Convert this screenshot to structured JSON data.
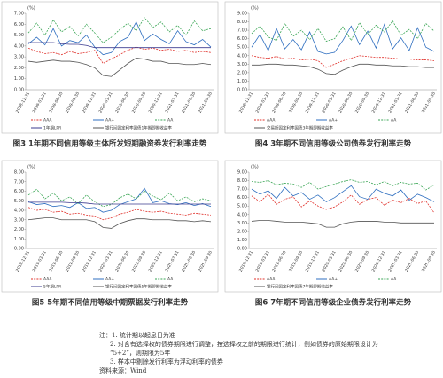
{
  "chart_data": [
    {
      "type": "line",
      "title": "图3 1年期不同信用等级主体所发短期融资券发行利率走势",
      "y_label": "(%)",
      "categories": [
        "2018-12-31",
        null,
        "2019-03-31",
        null,
        "2019-06-30",
        null,
        "2019-09-30",
        null,
        "2019-12-31",
        null,
        "2020-03-31",
        null,
        "2020-06-30",
        null,
        "2020-09-30",
        null,
        "2020-12-31",
        null,
        "2021-03-31",
        null,
        "2021-06-30",
        null,
        "2021-09-30"
      ],
      "ylim": [
        0,
        7
      ],
      "yticks": [
        {
          "value": 0,
          "label": "0.00"
        },
        {
          "value": 1,
          "label": "1.00"
        },
        {
          "value": 2,
          "label": "2.00"
        },
        {
          "value": 3,
          "label": "3.00"
        },
        {
          "value": 4,
          "label": "4.00"
        },
        {
          "value": 5,
          "label": "5.00"
        },
        {
          "value": 6,
          "label": "6.00"
        },
        {
          "value": 7,
          "label": "7.00"
        }
      ],
      "series": [
        {
          "name": "AAA",
          "color": "#e0302a",
          "dash": true,
          "values": [
            3.8,
            3.5,
            3.3,
            3.4,
            3.2,
            3.5,
            3.3,
            3.4,
            3.6,
            2.4,
            2.8,
            3.2,
            3.6,
            3.9,
            3.7,
            3.8,
            3.6,
            3.7,
            3.5,
            3.6,
            3.4,
            3.5,
            3.4
          ]
        },
        {
          "name": "AA+",
          "color": "#2f6fc0",
          "dash": false,
          "values": [
            4.2,
            4.8,
            4.1,
            5.6,
            4.0,
            4.5,
            4.3,
            5.0,
            3.9,
            3.2,
            3.4,
            4.4,
            4.8,
            6.2,
            4.5,
            5.1,
            4.6,
            4.2,
            5.4,
            4.4,
            4.1,
            4.6,
            3.9
          ]
        },
        {
          "name": "AA",
          "color": "#3aa655",
          "dash": true,
          "values": [
            5.2,
            6.1,
            5.0,
            6.4,
            5.3,
            5.8,
            4.9,
            6.0,
            5.2,
            4.3,
            4.8,
            5.5,
            6.1,
            5.4,
            6.6,
            5.7,
            6.2,
            5.3,
            5.9,
            5.0,
            6.3,
            5.4,
            5.6
          ]
        },
        {
          "name": "1年期LPR",
          "color": "#3b3b8f",
          "dash": false,
          "values": [
            4.31,
            4.31,
            4.31,
            4.31,
            4.2,
            4.15,
            4.15,
            4.05,
            3.85,
            3.85,
            3.85,
            3.85,
            3.85,
            3.85,
            3.85,
            3.85,
            3.85,
            3.85,
            3.85,
            3.85,
            3.85,
            3.85,
            3.85
          ]
        },
        {
          "name": "银行间固定利率国债1年期即期收益率",
          "color": "#555555",
          "dash": false,
          "values": [
            2.6,
            2.5,
            2.6,
            2.7,
            2.6,
            2.6,
            2.5,
            2.3,
            2.0,
            1.3,
            1.2,
            1.8,
            2.4,
            2.9,
            2.8,
            2.6,
            2.6,
            2.4,
            2.4,
            2.3,
            2.3,
            2.4,
            2.3
          ]
        }
      ]
    },
    {
      "type": "line",
      "title": "图4 3年期不同信用等级公司债券发行利率走势",
      "y_label": "(%)",
      "categories": [
        "2018-12-31",
        null,
        "2019-03-31",
        null,
        "2019-06-30",
        null,
        "2019-09-30",
        null,
        "2019-12-31",
        null,
        "2020-03-31",
        null,
        "2020-06-30",
        null,
        "2020-09-30",
        null,
        "2020-12-31",
        null,
        "2021-03-31",
        null,
        "2021-06-30",
        null,
        "2021-09-30"
      ],
      "ylim": [
        0,
        9
      ],
      "yticks": [
        {
          "value": 0,
          "label": "0.00"
        },
        {
          "value": 1,
          "label": "1.00"
        },
        {
          "value": 2,
          "label": "2.00"
        },
        {
          "value": 3,
          "label": "3.00"
        },
        {
          "value": 4,
          "label": "4.00"
        },
        {
          "value": 5,
          "label": "5.00"
        },
        {
          "value": 6,
          "label": "6.00"
        },
        {
          "value": 7,
          "label": "7.00"
        },
        {
          "value": 8,
          "label": "8.00"
        },
        {
          "value": 9,
          "label": "9.00"
        }
      ],
      "series": [
        {
          "name": "AAA",
          "color": "#e0302a",
          "dash": true,
          "values": [
            4.0,
            3.8,
            3.7,
            3.9,
            3.6,
            3.7,
            3.5,
            3.6,
            3.4,
            2.6,
            3.0,
            3.4,
            3.7,
            4.0,
            3.9,
            3.8,
            3.8,
            3.7,
            3.6,
            3.6,
            3.5,
            3.5,
            3.4
          ]
        },
        {
          "name": "AA+",
          "color": "#2f6fc0",
          "dash": false,
          "values": [
            5.0,
            6.5,
            4.6,
            7.2,
            4.8,
            5.9,
            4.7,
            6.8,
            4.5,
            4.2,
            4.4,
            5.8,
            7.5,
            5.3,
            6.9,
            4.9,
            7.7,
            4.8,
            6.1,
            4.6,
            7.3,
            5.0,
            4.5
          ]
        },
        {
          "name": "AA",
          "color": "#3aa655",
          "dash": true,
          "values": [
            6.6,
            7.5,
            6.2,
            5.8,
            7.8,
            6.3,
            7.0,
            5.9,
            7.2,
            5.7,
            6.0,
            7.4,
            5.8,
            7.9,
            6.5,
            7.6,
            6.8,
            8.1,
            6.4,
            7.1,
            6.0,
            7.8,
            6.9
          ]
        },
        {
          "name": "交易所固定利率国债3年期即期收益率",
          "color": "#555555",
          "dash": false,
          "values": [
            2.9,
            2.9,
            3.0,
            3.0,
            2.9,
            2.9,
            2.8,
            2.7,
            2.4,
            1.9,
            1.8,
            2.3,
            2.7,
            3.0,
            3.0,
            2.9,
            2.9,
            2.8,
            2.8,
            2.7,
            2.7,
            2.6,
            2.6
          ]
        }
      ]
    },
    {
      "type": "line",
      "title": "图5 5年期不同信用等级中期票据发行利率走势",
      "y_label": "(%)",
      "categories": [
        "2018-12-31",
        null,
        "2019-03-31",
        null,
        "2019-06-30",
        null,
        "2019-09-30",
        null,
        "2019-12-31",
        null,
        "2020-03-31",
        null,
        "2020-06-30",
        null,
        "2020-09-30",
        null,
        "2020-12-31",
        null,
        "2021-03-31",
        null,
        "2021-06-30",
        null,
        "2021-09-30"
      ],
      "ylim": [
        0,
        8
      ],
      "yticks": [
        {
          "value": 0,
          "label": "0.00"
        },
        {
          "value": 1,
          "label": "1.00"
        },
        {
          "value": 2,
          "label": "2.00"
        },
        {
          "value": 3,
          "label": "3.00"
        },
        {
          "value": 4,
          "label": "4.00"
        },
        {
          "value": 5,
          "label": "5.00"
        },
        {
          "value": 6,
          "label": "6.00"
        },
        {
          "value": 7,
          "label": "7.00"
        },
        {
          "value": 8,
          "label": "8.00"
        }
      ],
      "series": [
        {
          "name": "AAA",
          "color": "#e0302a",
          "dash": true,
          "values": [
            4.3,
            4.0,
            4.1,
            3.8,
            3.9,
            3.6,
            3.7,
            3.5,
            3.4,
            3.0,
            3.2,
            3.6,
            3.8,
            4.1,
            3.9,
            3.8,
            3.9,
            3.7,
            3.6,
            3.5,
            3.7,
            3.6,
            3.5
          ]
        },
        {
          "name": "AA+",
          "color": "#2f6fc0",
          "dash": false,
          "values": [
            4.9,
            4.6,
            4.7,
            4.4,
            4.5,
            4.3,
            4.8,
            4.2,
            4.3,
            3.8,
            4.0,
            4.6,
            4.9,
            5.2,
            6.3,
            4.8,
            5.0,
            4.7,
            4.6,
            4.8,
            4.5,
            4.7,
            4.4
          ]
        },
        {
          "name": "AA",
          "color": "#3aa655",
          "dash": true,
          "values": [
            5.6,
            6.2,
            5.2,
            5.8,
            5.0,
            5.4,
            4.7,
            5.6,
            4.9,
            4.4,
            4.6,
            5.3,
            5.7,
            5.2,
            6.0,
            5.5,
            5.1,
            5.8,
            5.0,
            5.4,
            4.9,
            5.2,
            5.0
          ]
        },
        {
          "name": "5年期LPR",
          "color": "#3b3b8f",
          "dash": false,
          "values": [
            4.85,
            4.85,
            4.85,
            4.85,
            4.85,
            4.8,
            4.8,
            4.75,
            4.65,
            4.65,
            4.65,
            4.65,
            4.65,
            4.65,
            4.65,
            4.65,
            4.65,
            4.65,
            4.65,
            4.65,
            4.65,
            4.65,
            4.65
          ]
        },
        {
          "name": "银行间固定利率国债5年期即期收益率",
          "color": "#555555",
          "dash": false,
          "values": [
            3.0,
            3.1,
            3.2,
            3.2,
            3.0,
            3.0,
            3.0,
            3.0,
            2.8,
            2.2,
            2.1,
            2.6,
            2.9,
            3.1,
            3.1,
            3.0,
            3.0,
            3.0,
            2.9,
            2.9,
            2.8,
            2.9,
            2.8
          ]
        }
      ]
    },
    {
      "type": "line",
      "title": "图6 7年期不同信用等级企业债券发行利率走势",
      "y_label": "(%)",
      "categories": [
        "2018-12-31",
        null,
        "2019-03-31",
        null,
        "2019-06-30",
        null,
        "2019-09-30",
        null,
        "2019-12-31",
        null,
        "2020-03-31",
        null,
        "2020-06-30",
        null,
        "2020-09-30",
        null,
        "2020-12-31",
        null,
        "2021-03-31",
        null,
        "2021-06-30",
        null,
        "2021-09-30"
      ],
      "ylim": [
        0,
        9
      ],
      "yticks": [
        {
          "value": 0,
          "label": "0.00"
        },
        {
          "value": 1,
          "label": "1.00"
        },
        {
          "value": 2,
          "label": "2.00"
        },
        {
          "value": 3,
          "label": "3.00"
        },
        {
          "value": 4,
          "label": "4.00"
        },
        {
          "value": 5,
          "label": "5.00"
        },
        {
          "value": 6,
          "label": "6.00"
        },
        {
          "value": 7,
          "label": "7.00"
        },
        {
          "value": 8,
          "label": "8.00"
        },
        {
          "value": 9,
          "label": "9.00"
        }
      ],
      "series": [
        {
          "name": "AAA",
          "color": "#e0302a",
          "dash": true,
          "values": [
            6.2,
            5.5,
            6.4,
            5.2,
            5.8,
            6.1,
            4.9,
            5.6,
            5.0,
            4.6,
            4.9,
            5.5,
            6.3,
            5.2,
            5.8,
            6.0,
            5.1,
            5.7,
            5.4,
            5.9,
            5.3,
            5.6,
            4.2
          ]
        },
        {
          "name": "AA+",
          "color": "#2f6fc0",
          "dash": false,
          "values": [
            7.0,
            6.4,
            6.8,
            5.9,
            7.2,
            6.2,
            6.6,
            5.8,
            6.3,
            5.5,
            6.0,
            6.7,
            7.4,
            6.1,
            5.8,
            7.0,
            6.5,
            6.2,
            6.9,
            5.7,
            6.4,
            6.0,
            5.5
          ]
        },
        {
          "name": "AA",
          "color": "#3aa655",
          "dash": true,
          "values": [
            7.9,
            7.8,
            8.0,
            7.5,
            7.7,
            7.6,
            7.2,
            7.8,
            7.0,
            7.3,
            7.6,
            7.9,
            8.1,
            7.8,
            7.9,
            7.5,
            7.9,
            7.4,
            7.8,
            7.6,
            7.7,
            6.9,
            7.5
          ]
        },
        {
          "name": "银行间固定利率国债7年期即期收益率",
          "color": "#555555",
          "dash": false,
          "values": [
            3.2,
            3.3,
            3.3,
            3.2,
            3.1,
            3.1,
            3.1,
            3.0,
            2.9,
            2.5,
            2.5,
            2.9,
            3.1,
            3.2,
            3.2,
            3.2,
            3.1,
            3.1,
            3.0,
            3.0,
            3.0,
            3.0,
            3.0
          ]
        }
      ]
    }
  ],
  "notes": [
    "注：1. 统计期以起息日为准",
    "2. 对含有选择权的债券期限进行调整，按选择权之前的期限进行统计，例如债券的原始期限设计为",
    "“5+2”，则期限为5年",
    "3. 样本中剔除发行利率为浮动利率的债券",
    "资料来源：Wind"
  ]
}
